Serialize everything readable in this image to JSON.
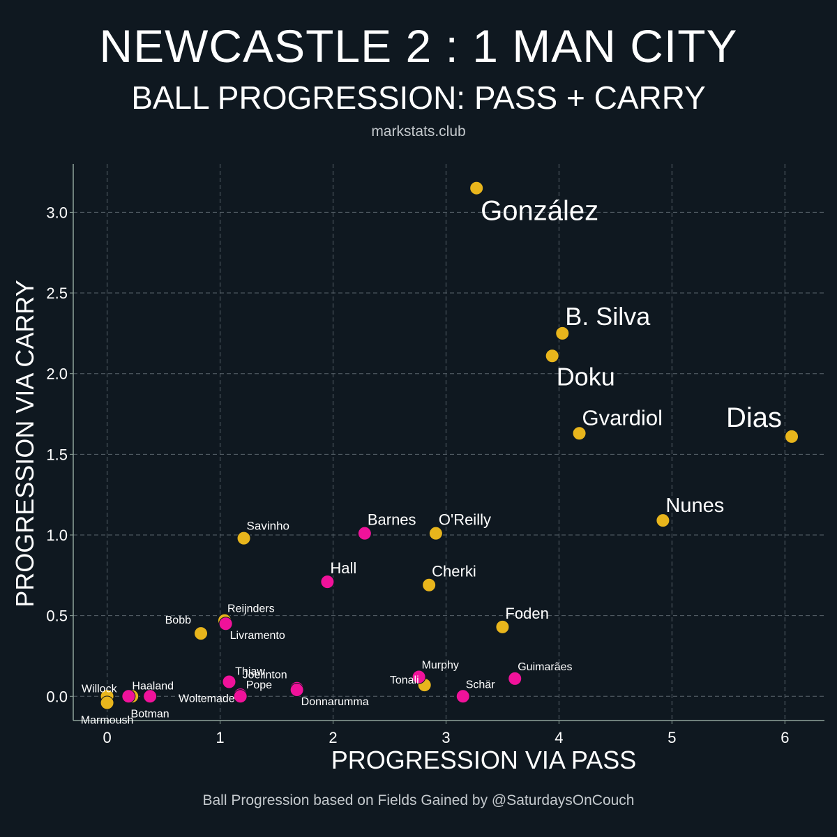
{
  "header": {
    "title": "NEWCASTLE 2 : 1 MAN CITY",
    "subtitle": "BALL PROGRESSION: PASS + CARRY",
    "source": "markstats.club"
  },
  "footer": {
    "caption": "Ball Progression based on Fields Gained by @SaturdaysOnCouch"
  },
  "colors": {
    "background": "#0f1820",
    "man_city": "#e8b51c",
    "newcastle": "#f0129a",
    "grid": "#5a646c",
    "axis": "#8fa39a"
  },
  "chart_data": {
    "type": "scatter",
    "xlabel": "PROGRESSION VIA PASS",
    "ylabel": "PROGRESSION VIA CARRY",
    "xlim": [
      -0.3,
      6.35
    ],
    "ylim": [
      -0.15,
      3.3
    ],
    "xticks": [
      0,
      1,
      2,
      3,
      4,
      5,
      6
    ],
    "xtick_labels": [
      "0",
      "1",
      "2",
      "3",
      "4",
      "5",
      "6"
    ],
    "yticks": [
      0.0,
      0.5,
      1.0,
      1.5,
      2.0,
      2.5,
      3.0
    ],
    "ytick_labels": [
      "0.0",
      "0.5",
      "1.0",
      "1.5",
      "2.0",
      "2.5",
      "3.0"
    ],
    "grid": true,
    "series": [
      {
        "name": "Man City",
        "color": "#e8b51c",
        "points": [
          {
            "label": "González",
            "x": 3.27,
            "y": 3.15,
            "size": "xl",
            "anchor": "below-right"
          },
          {
            "label": "B. Silva",
            "x": 4.03,
            "y": 2.25,
            "size": "l",
            "anchor": "above-right"
          },
          {
            "label": "Doku",
            "x": 3.94,
            "y": 2.11,
            "size": "l",
            "anchor": "below-right"
          },
          {
            "label": "Gvardiol",
            "x": 4.18,
            "y": 1.63,
            "size": "m",
            "anchor": "above-right"
          },
          {
            "label": "Dias",
            "x": 6.06,
            "y": 1.61,
            "size": "xl",
            "anchor": "above-left"
          },
          {
            "label": "Nunes",
            "x": 4.92,
            "y": 1.09,
            "size": "m2",
            "anchor": "above-right"
          },
          {
            "label": "Savinho",
            "x": 1.21,
            "y": 0.98,
            "size": "s",
            "anchor": "above-right"
          },
          {
            "label": "O'Reilly",
            "x": 2.91,
            "y": 1.01,
            "size": "s2",
            "anchor": "above-right"
          },
          {
            "label": "Cherki",
            "x": 2.85,
            "y": 0.69,
            "size": "s2",
            "anchor": "above-right"
          },
          {
            "label": "Foden",
            "x": 3.5,
            "y": 0.43,
            "size": "s2",
            "anchor": "above-right"
          },
          {
            "label": "Reijnders",
            "x": 1.04,
            "y": 0.47,
            "size": "xs",
            "anchor": "above-right"
          },
          {
            "label": "Bobb",
            "x": 0.83,
            "y": 0.39,
            "size": "xs",
            "anchor": "above-left"
          },
          {
            "label": "Tonali",
            "x": 2.81,
            "y": 0.07,
            "size": "xs",
            "anchor": "left"
          },
          {
            "label": "Willock",
            "x": 0.0,
            "y": 0.0,
            "size": "xs",
            "anchor": "above-left-near"
          },
          {
            "label": "Haaland",
            "x": 0.22,
            "y": 0.0,
            "size": "xs",
            "anchor": "above"
          },
          {
            "label": "Marmoush",
            "x": 0.0,
            "y": -0.04,
            "size": "xs",
            "anchor": "below"
          }
        ]
      },
      {
        "name": "Newcastle",
        "color": "#f0129a",
        "points": [
          {
            "label": "Barnes",
            "x": 2.28,
            "y": 1.01,
            "size": "s2",
            "anchor": "above-right"
          },
          {
            "label": "Hall",
            "x": 1.95,
            "y": 0.71,
            "size": "s2",
            "anchor": "above-right"
          },
          {
            "label": "Livramento",
            "x": 1.05,
            "y": 0.45,
            "size": "xs",
            "anchor": "below-right"
          },
          {
            "label": "Murphy",
            "x": 2.76,
            "y": 0.12,
            "size": "xs",
            "anchor": "above-right"
          },
          {
            "label": "Guimarães",
            "x": 3.61,
            "y": 0.11,
            "size": "xs",
            "anchor": "above-right"
          },
          {
            "label": "Thiaw",
            "x": 1.08,
            "y": 0.09,
            "size": "xs",
            "anchor": "above"
          },
          {
            "label": "Joelinton",
            "x": 1.68,
            "y": 0.05,
            "size": "xs",
            "anchor": "above-left"
          },
          {
            "label": "Pope",
            "x": 1.18,
            "y": 0.01,
            "size": "xs",
            "anchor": "right"
          },
          {
            "label": "Donnarumma",
            "x": 1.68,
            "y": 0.04,
            "size": "xs",
            "anchor": "below-right"
          },
          {
            "label": "Woltemade",
            "x": 1.18,
            "y": 0.0,
            "size": "xs",
            "anchor": "left-far"
          },
          {
            "label": "Schär",
            "x": 3.15,
            "y": 0.0,
            "size": "xs",
            "anchor": "above-right"
          },
          {
            "label": "Botman",
            "x": 0.38,
            "y": 0.0,
            "size": "xs",
            "anchor": "below"
          },
          {
            "label": "",
            "x": 0.19,
            "y": 0.0,
            "size": "xs",
            "anchor": "none"
          }
        ]
      }
    ]
  }
}
